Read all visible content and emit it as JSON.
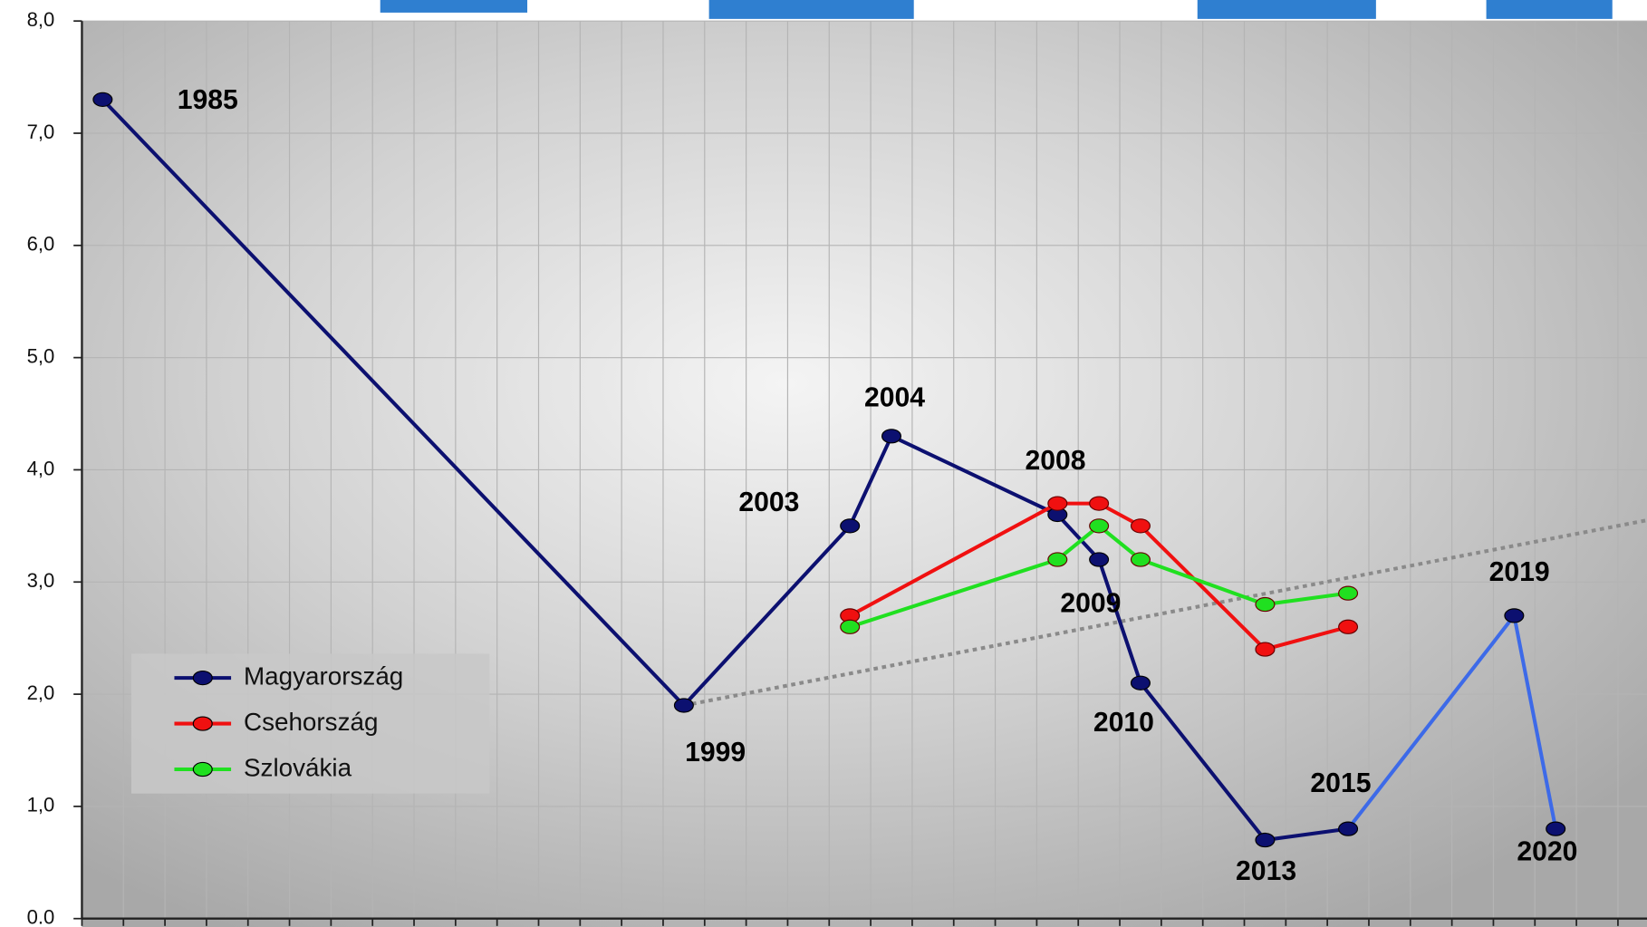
{
  "chart_data": {
    "type": "line",
    "xlim": [
      1984.5,
      2022.2
    ],
    "xticks": [
      1984.5,
      1985.5,
      1986.5,
      1987.5,
      1988.5,
      1989.5,
      1990.5,
      1991.5,
      1992.5,
      1993.5,
      1994.5,
      1995.5,
      1996.5,
      1997.5,
      1998.5,
      1999.5,
      2000.5,
      2001.5,
      2002.5,
      2003.5,
      2004.5,
      2005.5,
      2006.5,
      2007.5,
      2008.5,
      2009.5,
      2010.5,
      2011.5,
      2012.5,
      2013.5,
      2014.5,
      2015.5,
      2016.5,
      2017.5,
      2018.5,
      2019.5,
      2020.5,
      2021.5
    ],
    "ylim": [
      0,
      8
    ],
    "yticks": [
      {
        "value": 0,
        "label": "0.0"
      },
      {
        "value": 1,
        "label": "1,0"
      },
      {
        "value": 2,
        "label": "2,0"
      },
      {
        "value": 3,
        "label": "3,0"
      },
      {
        "value": 4,
        "label": "4,0"
      },
      {
        "value": 5,
        "label": "5,0"
      },
      {
        "value": 6,
        "label": "6,0"
      },
      {
        "value": 7,
        "label": "7,0"
      },
      {
        "value": 8,
        "label": "8,0"
      }
    ],
    "grid": true,
    "legend": "lower left",
    "series": [
      {
        "name": "Magyarország",
        "color": "#0c1070",
        "late_color": "#3d6ae8",
        "late_from": 2015,
        "x": [
          1985,
          1999,
          2003,
          2004,
          2008,
          2009,
          2010,
          2013,
          2015,
          2019,
          2020
        ],
        "values": [
          7.3,
          1.9,
          3.5,
          4.3,
          3.6,
          3.2,
          2.1,
          0.7,
          0.8,
          2.7,
          0.8
        ]
      },
      {
        "name": "Csehország",
        "color": "#f01010",
        "x": [
          2003,
          2008,
          2009,
          2010,
          2013,
          2015
        ],
        "values": [
          2.7,
          3.7,
          3.7,
          3.5,
          2.4,
          2.6
        ]
      },
      {
        "name": "Szlovákia",
        "color": "#20e020",
        "x": [
          2003,
          2008,
          2009,
          2010,
          2013,
          2015
        ],
        "values": [
          2.6,
          3.2,
          3.5,
          3.2,
          2.8,
          2.9
        ]
      }
    ],
    "trendline": {
      "color": "#8a8a8a",
      "x": [
        1999,
        2022.2
      ],
      "values": [
        1.9,
        3.55
      ]
    }
  }
}
